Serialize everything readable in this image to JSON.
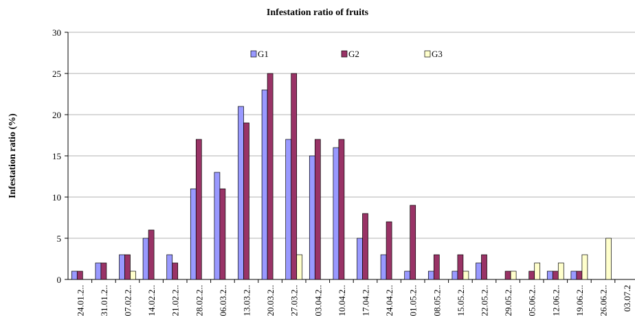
{
  "chart_data": {
    "type": "bar",
    "title": "Infestation ratio of fruits",
    "y_label": "Infestation ratio (%)",
    "categories": [
      "24.01.2..",
      "31.01.2..",
      "07.02.2..",
      "14.02.2..",
      "21.02.2..",
      "28.02.2..",
      "06.03.2..",
      "13.03.2..",
      "20.03.2..",
      "27.03.2..",
      "03.04.2..",
      "10.04.2..",
      "17.04.2..",
      "24.04.2..",
      "01.05.2..",
      "08.05.2..",
      "15.05.2..",
      "22.05.2..",
      "29.05.2..",
      "05.06.2..",
      "12.06.2..",
      "19.06.2..",
      "26.06.2..",
      "03.07.2"
    ],
    "series": [
      {
        "name": "G1",
        "color": "#9999ff",
        "values": [
          1,
          2,
          3,
          5,
          3,
          11,
          13,
          21,
          23,
          17,
          15,
          16,
          5,
          3,
          1,
          1,
          1,
          2,
          0,
          0,
          1,
          1,
          0,
          null
        ]
      },
      {
        "name": "G2",
        "color": "#993366",
        "values": [
          1,
          2,
          3,
          6,
          2,
          17,
          11,
          19,
          25,
          25,
          17,
          17,
          8,
          7,
          9,
          3,
          3,
          3,
          1,
          1,
          1,
          1,
          0,
          null
        ]
      },
      {
        "name": "G3",
        "color": "#ffffcc",
        "values": [
          0,
          0,
          1,
          0,
          0,
          0,
          0,
          0,
          0,
          3,
          0,
          0,
          0,
          0,
          0,
          0,
          1,
          0,
          1,
          2,
          2,
          3,
          5,
          null
        ]
      }
    ],
    "ylim": [
      0,
      30
    ],
    "yticks": [
      0,
      5,
      10,
      15,
      20,
      25,
      30
    ],
    "grid": true,
    "legend": "top"
  }
}
